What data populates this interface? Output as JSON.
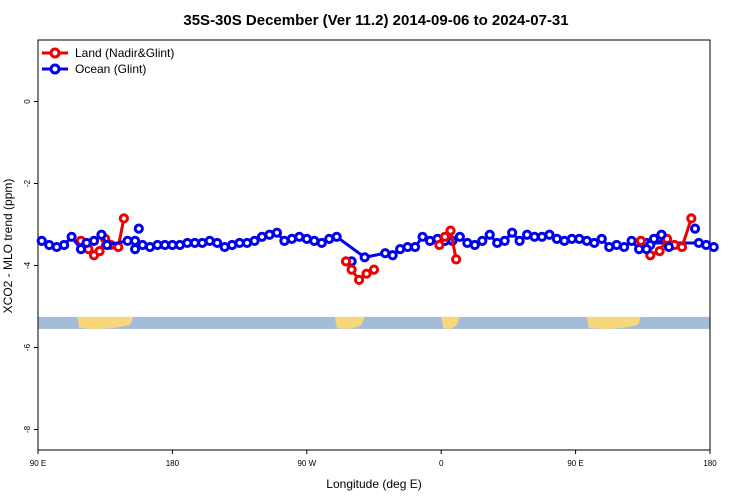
{
  "chart_data": {
    "type": "line",
    "title": "35S-30S December (Ver 11.2)   2014-09-06 to 2024-07-31",
    "xlabel": "Longitude (deg E)",
    "ylabel": "XCO2 - MLO trend (ppm)",
    "xlim": [
      90,
      450
    ],
    "ylim": [
      -8.5,
      1.5
    ],
    "x_ticks": [
      90,
      162,
      234,
      306,
      378,
      450
    ],
    "x_tick_labels": [
      "90 E",
      "180",
      "90 W",
      "0",
      "90 E",
      "180"
    ],
    "y_ticks": [
      0,
      -2,
      -4,
      -6,
      -8
    ],
    "y_tick_labels": [
      "0",
      "-2",
      "-4",
      "-6",
      "-8"
    ],
    "grid": false,
    "legend_position": "top-left",
    "series": [
      {
        "name": "Land (Nadir&Glint)",
        "color": "#ee0000",
        "x": [
          113,
          117,
          120,
          123,
          126,
          129,
          133,
          136
        ],
        "y": [
          -3.4,
          -3.6,
          -3.75,
          -3.65,
          -3.35,
          -3.5,
          -3.55,
          -2.85
        ]
      },
      {
        "name": "Ocean (Glint)",
        "color": "#0000ee",
        "x": [
          92,
          96,
          100,
          104,
          108,
          113,
          116,
          120,
          124,
          127,
          138,
          142,
          146,
          150,
          154,
          158,
          162,
          166,
          170,
          174,
          178,
          182,
          186,
          190,
          194,
          198,
          202,
          206,
          210,
          214,
          218,
          222,
          226,
          230,
          234,
          238,
          242,
          246,
          250,
          265,
          276,
          280,
          284,
          288,
          292,
          296,
          300,
          304,
          308,
          312,
          316,
          320,
          324,
          328,
          332,
          336,
          340,
          344,
          348,
          352,
          356,
          360,
          364,
          368,
          372,
          376,
          380,
          384,
          388,
          392,
          396,
          400,
          404,
          408,
          412,
          416,
          444,
          448,
          452
        ],
        "y": [
          -3.4,
          -3.5,
          -3.55,
          -3.5,
          -3.3,
          -3.6,
          -3.45,
          -3.4,
          -3.25,
          -3.5,
          -3.4,
          -3.4,
          -3.5,
          -3.55,
          -3.5,
          -3.5,
          -3.5,
          -3.5,
          -3.45,
          -3.45,
          -3.45,
          -3.4,
          -3.45,
          -3.55,
          -3.5,
          -3.45,
          -3.45,
          -3.4,
          -3.3,
          -3.25,
          -3.2,
          -3.4,
          -3.35,
          -3.3,
          -3.35,
          -3.4,
          -3.45,
          -3.35,
          -3.3,
          -3.8,
          -3.7,
          -3.75,
          -3.6,
          -3.55,
          -3.55,
          -3.3,
          -3.4,
          -3.35,
          -3.4,
          -3.4,
          -3.3,
          -3.45,
          -3.5,
          -3.4,
          -3.25,
          -3.45,
          -3.4,
          -3.2,
          -3.4,
          -3.25,
          -3.3,
          -3.3,
          -3.25,
          -3.35,
          -3.4,
          -3.35,
          -3.35,
          -3.4,
          -3.45,
          -3.35,
          -3.55,
          -3.5,
          -3.55,
          -3.4,
          -3.6,
          -3.45,
          -3.45,
          -3.5,
          -3.55
        ]
      },
      {
        "name": "Ocean (Glint)",
        "color": "#0000ee",
        "x": [
          258,
          418,
          422
        ],
        "y": [
          -3.9,
          -3.5,
          -3.35
        ],
        "points_only": true
      },
      {
        "name": "Land (Nadir&Glint)",
        "color": "#ee0000",
        "x": [
          255,
          258,
          262,
          266,
          270
        ],
        "y": [
          -3.9,
          -4.1,
          -4.35,
          -4.2,
          -4.1
        ]
      },
      {
        "name": "Land (Nadir&Glint)",
        "color": "#ee0000",
        "x": [
          305,
          308,
          311,
          314
        ],
        "y": [
          -3.5,
          -3.3,
          -3.15,
          -3.85
        ]
      },
      {
        "name": "Land (Nadir&Glint)",
        "color": "#ee0000",
        "x": [
          413,
          418,
          423,
          427,
          431,
          435,
          440
        ],
        "y": [
          -3.4,
          -3.75,
          -3.65,
          -3.35,
          -3.5,
          -3.55,
          -2.85
        ]
      },
      {
        "name": "Ocean (Glint)",
        "color": "#0000ee",
        "x": [
          142,
          144,
          416,
          420,
          424,
          428,
          442
        ],
        "y": [
          -3.6,
          -3.1,
          -3.6,
          -3.35,
          -3.25,
          -3.55,
          -3.1
        ],
        "points_only": true
      }
    ],
    "land_ocean_strip": {
      "y": -5.4,
      "ocean_color": "#a3bcd9",
      "land_color": "#f8d67a",
      "land_ranges": [
        [
          111,
          141
        ],
        [
          249,
          265
        ],
        [
          306,
          316
        ],
        [
          384,
          413
        ]
      ]
    }
  }
}
